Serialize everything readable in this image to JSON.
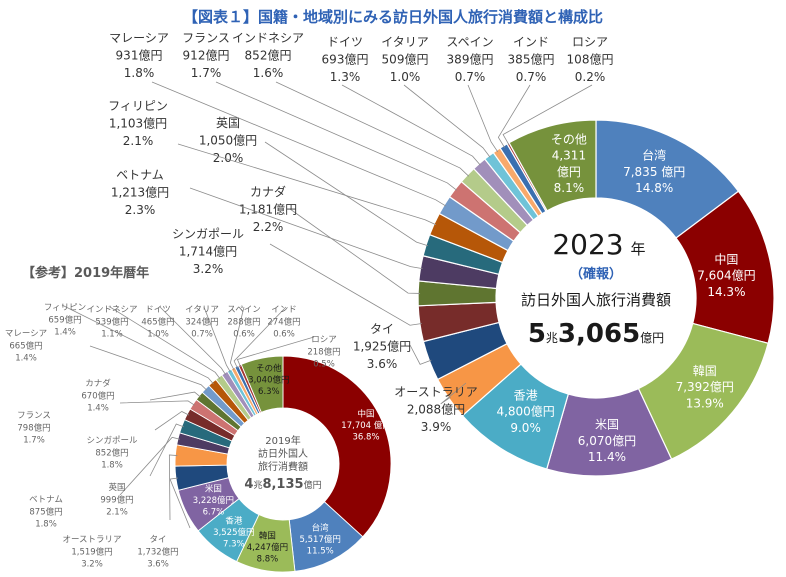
{
  "title": "【図表１】国籍・地域別にみる訪日外国人旅行消費額と構成比",
  "reference_title": "【参考】2019年暦年",
  "chart_data": [
    {
      "type": "pie",
      "variant": "donut",
      "center": {
        "year": "2023",
        "year_suffix": "年",
        "sub": "（確報）",
        "label": "訪日外国人旅行消費額",
        "total_big": "5",
        "total_unit1": "兆",
        "total_rest": "3,065",
        "total_unit2": "億円"
      },
      "slices": [
        {
          "name": "台湾",
          "value": 7835,
          "amount": "7,835 億円",
          "share": "14.8%",
          "color": "#4f81bd"
        },
        {
          "name": "中国",
          "value": 7604,
          "amount": "7,604億円",
          "share": "14.3%",
          "color": "#8b0000"
        },
        {
          "name": "韓国",
          "value": 7392,
          "amount": "7,392億円",
          "share": "13.9%",
          "color": "#9bbb59"
        },
        {
          "name": "米国",
          "value": 6070,
          "amount": "6,070億円",
          "share": "11.4%",
          "color": "#8064a2"
        },
        {
          "name": "香港",
          "value": 4800,
          "amount": "4,800億円",
          "share": "9.0%",
          "color": "#4bacc6"
        },
        {
          "name": "オーストラリア",
          "value": 2088,
          "amount": "2,088億円",
          "share": "3.9%",
          "color": "#f79646"
        },
        {
          "name": "タイ",
          "value": 1925,
          "amount": "1,925億円",
          "share": "3.6%",
          "color": "#1f497d"
        },
        {
          "name": "シンガポール",
          "value": 1714,
          "amount": "1,714億円",
          "share": "3.2%",
          "color": "#772c2a"
        },
        {
          "name": "カナダ",
          "value": 1181,
          "amount": "1,181億円",
          "share": "2.2%",
          "color": "#5f7530"
        },
        {
          "name": "ベトナム",
          "value": 1213,
          "amount": "1,213億円",
          "share": "2.3%",
          "color": "#4d3b62"
        },
        {
          "name": "英国",
          "value": 1050,
          "amount": "1,050億円",
          "share": "2.0%",
          "color": "#276a7c"
        },
        {
          "name": "フィリピン",
          "value": 1103,
          "amount": "1,103億円",
          "share": "2.1%",
          "color": "#b65708"
        },
        {
          "name": "マレーシア",
          "value": 931,
          "amount": "931億円",
          "share": "1.8%",
          "color": "#729aca"
        },
        {
          "name": "フランス",
          "value": 912,
          "amount": "912億円",
          "share": "1.7%",
          "color": "#cd7371"
        },
        {
          "name": "インドネシア",
          "value": 852,
          "amount": "852億円",
          "share": "1.6%",
          "color": "#b4cb8a"
        },
        {
          "name": "ドイツ",
          "value": 693,
          "amount": "693億円",
          "share": "1.3%",
          "color": "#a18fba"
        },
        {
          "name": "イタリア",
          "value": 509,
          "amount": "509億円",
          "share": "1.0%",
          "color": "#6fc3d8"
        },
        {
          "name": "スペイン",
          "value": 389,
          "amount": "389億円",
          "share": "0.7%",
          "color": "#f8a96b"
        },
        {
          "name": "インド",
          "value": 385,
          "amount": "385億円",
          "share": "0.7%",
          "color": "#3a6fb0"
        },
        {
          "name": "ロシア",
          "value": 108,
          "amount": "108億円",
          "share": "0.2%",
          "color": "#a33533"
        },
        {
          "name": "その他",
          "value": 4311,
          "amount": "4,311億円",
          "share": "8.1%",
          "color": "#76923c"
        }
      ]
    },
    {
      "type": "pie",
      "variant": "donut",
      "center": {
        "year": "2019年",
        "label1": "訪日外国人",
        "label2": "旅行消費額",
        "total_big": "4",
        "total_unit1": "兆",
        "total_rest": "8,135",
        "total_unit2": "億円"
      },
      "slices": [
        {
          "name": "中国",
          "value": 17704,
          "amount": "17,704 億円",
          "share": "36.8%",
          "color": "#8b0000"
        },
        {
          "name": "台湾",
          "value": 5517,
          "amount": "5,517億円",
          "share": "11.5%",
          "color": "#4f81bd"
        },
        {
          "name": "韓国",
          "value": 4247,
          "amount": "4,247億円",
          "share": "8.8%",
          "color": "#9bbb59"
        },
        {
          "name": "香港",
          "value": 3525,
          "amount": "3,525億円",
          "share": "7.3%",
          "color": "#4bacc6"
        },
        {
          "name": "米国",
          "value": 3228,
          "amount": "3,228億円",
          "share": "6.7%",
          "color": "#8064a2"
        },
        {
          "name": "タイ",
          "value": 1732,
          "amount": "1,732億円",
          "share": "3.6%",
          "color": "#1f497d"
        },
        {
          "name": "オーストラリア",
          "value": 1519,
          "amount": "1,519億円",
          "share": "3.2%",
          "color": "#f79646"
        },
        {
          "name": "ベトナム",
          "value": 875,
          "amount": "875億円",
          "share": "1.8%",
          "color": "#4d3b62"
        },
        {
          "name": "英国",
          "value": 999,
          "amount": "999億円",
          "share": "2.1%",
          "color": "#276a7c"
        },
        {
          "name": "シンガポール",
          "value": 852,
          "amount": "852億円",
          "share": "1.8%",
          "color": "#772c2a"
        },
        {
          "name": "フランス",
          "value": 798,
          "amount": "798億円",
          "share": "1.7%",
          "color": "#cd7371"
        },
        {
          "name": "カナダ",
          "value": 670,
          "amount": "670億円",
          "share": "1.4%",
          "color": "#5f7530"
        },
        {
          "name": "マレーシア",
          "value": 665,
          "amount": "665億円",
          "share": "1.4%",
          "color": "#729aca"
        },
        {
          "name": "フィリピン",
          "value": 659,
          "amount": "659億円",
          "share": "1.4%",
          "color": "#b65708"
        },
        {
          "name": "インドネシア",
          "value": 539,
          "amount": "539億円",
          "share": "1.1%",
          "color": "#b4cb8a"
        },
        {
          "name": "ドイツ",
          "value": 465,
          "amount": "465億円",
          "share": "1.0%",
          "color": "#a18fba"
        },
        {
          "name": "イタリア",
          "value": 324,
          "amount": "324億円",
          "share": "0.7%",
          "color": "#6fc3d8"
        },
        {
          "name": "スペイン",
          "value": 288,
          "amount": "288億円",
          "share": "0.6%",
          "color": "#f8a96b"
        },
        {
          "name": "インド",
          "value": 274,
          "amount": "274億円",
          "share": "0.6%",
          "color": "#3a6fb0"
        },
        {
          "name": "ロシア",
          "value": 218,
          "amount": "218億円",
          "share": "0.5%",
          "color": "#a33533"
        },
        {
          "name": "その他",
          "value": 3040,
          "amount": "3,040億円",
          "share": "6.3%",
          "color": "#76923c"
        }
      ]
    }
  ]
}
